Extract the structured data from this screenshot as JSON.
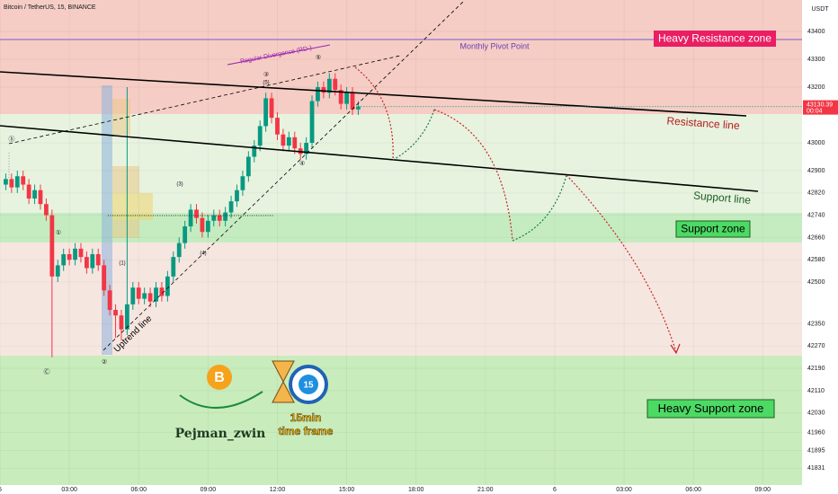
{
  "chart_data": {
    "type": "candlestick",
    "title": "Bitcoin / TetherUS, 15, BINANCE",
    "currency": "USDT",
    "countdown": "00:04",
    "up_color": "#089981",
    "down_color": "#f23645",
    "ylim": [
      41771,
      43513
    ],
    "yticks": [
      43400,
      43300,
      43200,
      43000,
      42900,
      42820,
      42740,
      42660,
      42580,
      42500,
      42350,
      42270,
      42190,
      42110,
      42030,
      41960,
      41895,
      41831
    ],
    "xlim": [
      0,
      34.7
    ],
    "xticks": [
      {
        "value": 0,
        "label": "5"
      },
      {
        "value": 3,
        "label": "03:00"
      },
      {
        "value": 6,
        "label": "06:00"
      },
      {
        "value": 9,
        "label": "09:00"
      },
      {
        "value": 12,
        "label": "12:00"
      },
      {
        "value": 15,
        "label": "15:00"
      },
      {
        "value": 18,
        "label": "18:00"
      },
      {
        "value": 21,
        "label": "21:00"
      },
      {
        "value": 24,
        "label": "6"
      },
      {
        "value": 27,
        "label": "03:00"
      },
      {
        "value": 30,
        "label": "06:00"
      },
      {
        "value": 33,
        "label": "09:00"
      }
    ],
    "x": [
      0.25,
      0.5,
      0.75,
      1,
      1.25,
      1.5,
      1.75,
      2,
      2.25,
      2.5,
      2.75,
      3,
      3.25,
      3.5,
      3.75,
      4,
      4.25,
      4.5,
      4.75,
      5,
      5.25,
      5.5,
      5.75,
      6,
      6.25,
      6.5,
      6.75,
      7,
      7.25,
      7.5,
      7.75,
      8,
      8.25,
      8.5,
      8.75,
      9,
      9.25,
      9.5,
      9.75,
      10,
      10.25,
      10.5,
      10.75,
      11,
      11.25,
      11.5,
      11.75,
      12,
      12.25,
      12.5,
      12.75,
      13,
      13.25,
      13.5,
      13.75,
      14,
      14.25,
      14.5,
      14.75,
      15,
      15.25,
      15.5
    ],
    "open": [
      42850,
      42870,
      42840,
      42880,
      42850,
      42800,
      42830,
      42780,
      42740,
      42520,
      42560,
      42600,
      42580,
      42620,
      42590,
      42550,
      42600,
      42560,
      42470,
      42400,
      42380,
      42330,
      42420,
      42480,
      42440,
      42460,
      42430,
      42480,
      42450,
      42520,
      42590,
      42640,
      42700,
      42760,
      42730,
      42680,
      42720,
      42740,
      42720,
      42750,
      42790,
      42830,
      42880,
      42950,
      42990,
      43060,
      43160,
      43090,
      43030,
      42990,
      43020,
      42980,
      42960,
      43000,
      43150,
      43200,
      43180,
      43230,
      43190,
      43140,
      43180,
      43120
    ],
    "high": [
      42890,
      42890,
      42900,
      42900,
      42870,
      42850,
      42850,
      42800,
      42760,
      42580,
      42620,
      42620,
      42640,
      42640,
      42610,
      42620,
      42620,
      42580,
      42490,
      42420,
      42400,
      43200,
      42500,
      42500,
      42480,
      42480,
      42500,
      42500,
      42540,
      42610,
      42660,
      42720,
      42780,
      42780,
      42750,
      42740,
      42760,
      42760,
      42770,
      42810,
      42850,
      42900,
      42970,
      43010,
      43080,
      43180,
      43180,
      43110,
      43050,
      43040,
      43040,
      43000,
      43020,
      43170,
      43220,
      43220,
      43250,
      43250,
      43210,
      43200,
      43200,
      43150
    ],
    "low": [
      42830,
      42820,
      42820,
      42830,
      42780,
      42780,
      42760,
      42720,
      42230,
      42500,
      42540,
      42560,
      42560,
      42570,
      42530,
      42530,
      42540,
      42450,
      42380,
      42300,
      42290,
      42310,
      42400,
      42420,
      42420,
      42410,
      42410,
      42430,
      42430,
      42500,
      42570,
      42620,
      42680,
      42710,
      42660,
      42660,
      42700,
      42700,
      42700,
      42730,
      42770,
      42810,
      42860,
      42930,
      42970,
      43040,
      43070,
      43010,
      42970,
      42970,
      42960,
      42940,
      42940,
      42980,
      43130,
      43160,
      43160,
      43170,
      43120,
      43120,
      43100,
      43100
    ],
    "close": [
      42870,
      42840,
      42880,
      42850,
      42800,
      42830,
      42780,
      42740,
      42520,
      42560,
      42600,
      42580,
      42620,
      42590,
      42550,
      42600,
      42560,
      42470,
      42400,
      42380,
      42330,
      42420,
      42480,
      42440,
      42460,
      42430,
      42480,
      42450,
      42520,
      42590,
      42640,
      42700,
      42760,
      42730,
      42680,
      42720,
      42740,
      42720,
      42750,
      42790,
      42830,
      42880,
      42950,
      42990,
      43060,
      43160,
      43090,
      43030,
      42990,
      43020,
      42980,
      42960,
      43000,
      43150,
      43200,
      43180,
      43230,
      43190,
      43140,
      43180,
      43120,
      43130.39
    ],
    "annotations": {
      "heavy_resistance": "Heavy Resistance zone",
      "pivot": "Monthly Pivot Point",
      "divergence": "Regular Divergence (RD-)",
      "resistance_line": "Resistance line",
      "support_line": "Support line",
      "support_zone": "Support zone",
      "heavy_support": "Heavy Support zone",
      "uptrend": "Uptrend line",
      "waves": [
        "ⓑ",
        "①",
        "②",
        "③",
        "(5)",
        "⑤",
        "④",
        "(1)",
        "(3)",
        "(4)",
        "Ⓒ"
      ]
    },
    "branding": {
      "author": "Pejman_zwin",
      "timeframe": "15min",
      "timeframe_sub": "time frame",
      "clock": "15"
    }
  }
}
